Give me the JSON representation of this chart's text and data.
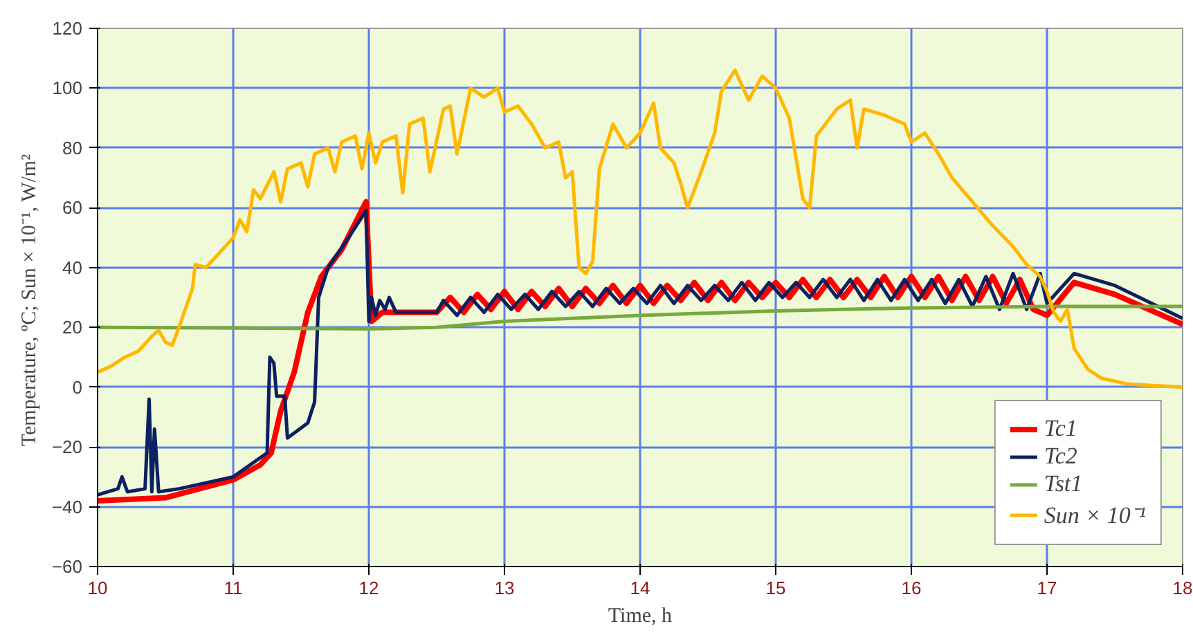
{
  "chart_data": {
    "type": "line",
    "xlabel": "Time, h",
    "ylabel": "Temperature, ºC;  Sun × 10⁻¹, W/m²",
    "xlim": [
      10,
      18
    ],
    "xticks": [
      10,
      11,
      12,
      13,
      14,
      15,
      16,
      17,
      18
    ],
    "ylim": [
      -60,
      120
    ],
    "yticks": [
      -60,
      -40,
      -20,
      0,
      20,
      40,
      60,
      80,
      100,
      120
    ],
    "grid": true,
    "legend": "bottom right",
    "line_style": "solid",
    "marker": "none",
    "series": [
      {
        "name": "Tc1",
        "color": "#ff0000",
        "x": [
          10.0,
          10.5,
          11.0,
          11.2,
          11.28,
          11.35,
          11.45,
          11.55,
          11.65,
          11.8,
          11.98,
          12.02,
          12.1,
          12.45,
          12.5,
          12.6,
          12.7,
          12.8,
          12.9,
          13.0,
          13.1,
          13.2,
          13.3,
          13.4,
          13.5,
          13.6,
          13.7,
          13.8,
          13.9,
          14.0,
          14.1,
          14.2,
          14.3,
          14.4,
          14.5,
          14.6,
          14.7,
          14.8,
          14.9,
          15.0,
          15.1,
          15.2,
          15.3,
          15.4,
          15.5,
          15.6,
          15.7,
          15.8,
          15.9,
          16.0,
          16.1,
          16.2,
          16.3,
          16.4,
          16.5,
          16.6,
          16.7,
          16.8,
          16.9,
          17.0,
          17.2,
          17.5,
          18.0
        ],
        "values": [
          -38,
          -37,
          -31,
          -26,
          -22,
          -8,
          5,
          25,
          37,
          46,
          62,
          22,
          25,
          25,
          25,
          30,
          25,
          31,
          26,
          32,
          26,
          32,
          27,
          33,
          27,
          33,
          28,
          34,
          28,
          34,
          28,
          34,
          29,
          35,
          29,
          35,
          29,
          35,
          30,
          35,
          30,
          36,
          30,
          36,
          30,
          36,
          30,
          37,
          30,
          37,
          30,
          37,
          29,
          37,
          29,
          37,
          28,
          36,
          26,
          24,
          35,
          31,
          21
        ]
      },
      {
        "name": "Tc2",
        "color": "#0d2060",
        "x": [
          10.0,
          10.15,
          10.18,
          10.22,
          10.35,
          10.38,
          10.4,
          10.42,
          10.45,
          10.6,
          11.0,
          11.25,
          11.27,
          11.3,
          11.32,
          11.38,
          11.4,
          11.55,
          11.6,
          11.63,
          11.7,
          11.85,
          11.98,
          12.0,
          12.02,
          12.05,
          12.08,
          12.12,
          12.15,
          12.2,
          12.5,
          12.55,
          12.65,
          12.75,
          12.85,
          12.95,
          13.05,
          13.15,
          13.25,
          13.35,
          13.45,
          13.55,
          13.65,
          13.75,
          13.85,
          13.95,
          14.05,
          14.15,
          14.25,
          14.35,
          14.45,
          14.55,
          14.65,
          14.75,
          14.85,
          14.95,
          15.05,
          15.15,
          15.25,
          15.35,
          15.45,
          15.55,
          15.65,
          15.75,
          15.85,
          15.95,
          16.05,
          16.15,
          16.25,
          16.35,
          16.45,
          16.55,
          16.65,
          16.75,
          16.85,
          16.95,
          17.0,
          17.2,
          17.5,
          18.0
        ],
        "values": [
          -36,
          -34,
          -30,
          -35,
          -34,
          -4,
          -35,
          -14,
          -35,
          -34,
          -30,
          -22,
          10,
          8,
          -3,
          -3,
          -17,
          -12,
          -5,
          30,
          40,
          50,
          59,
          22,
          30,
          24,
          29,
          26,
          30,
          25,
          25,
          29,
          24,
          30,
          25,
          31,
          26,
          31,
          26,
          32,
          27,
          32,
          27,
          33,
          28,
          33,
          28,
          34,
          28,
          34,
          29,
          34,
          29,
          35,
          29,
          35,
          30,
          35,
          30,
          36,
          30,
          36,
          29,
          36,
          29,
          36,
          29,
          36,
          28,
          36,
          27,
          37,
          26,
          38,
          26,
          38,
          28,
          38,
          34,
          23
        ]
      },
      {
        "name": "Tst1",
        "color": "#77aa3c",
        "x": [
          10,
          12,
          12.5,
          13,
          14,
          15,
          16,
          17,
          18
        ],
        "values": [
          20,
          19.5,
          20,
          22,
          24,
          25.5,
          26.5,
          27,
          27
        ]
      },
      {
        "name": "Sun × 10⁻¹",
        "color": "#ffb800",
        "x": [
          10.0,
          10.1,
          10.2,
          10.3,
          10.4,
          10.45,
          10.5,
          10.55,
          10.6,
          10.7,
          10.72,
          10.8,
          10.9,
          11.0,
          11.05,
          11.1,
          11.15,
          11.2,
          11.3,
          11.35,
          11.4,
          11.5,
          11.55,
          11.6,
          11.7,
          11.75,
          11.8,
          11.9,
          11.95,
          12.0,
          12.05,
          12.1,
          12.2,
          12.25,
          12.3,
          12.4,
          12.45,
          12.55,
          12.6,
          12.65,
          12.75,
          12.85,
          12.95,
          13.0,
          13.1,
          13.2,
          13.3,
          13.4,
          13.45,
          13.5,
          13.55,
          13.6,
          13.65,
          13.7,
          13.8,
          13.9,
          14.0,
          14.1,
          14.15,
          14.25,
          14.3,
          14.35,
          14.45,
          14.55,
          14.6,
          14.7,
          14.8,
          14.9,
          15.0,
          15.1,
          15.2,
          15.25,
          15.3,
          15.45,
          15.55,
          15.6,
          15.65,
          15.8,
          15.95,
          16.0,
          16.1,
          16.2,
          16.3,
          16.45,
          16.6,
          16.75,
          16.85,
          16.95,
          17.0,
          17.05,
          17.1,
          17.15,
          17.2,
          17.3,
          17.4,
          17.6,
          18.0
        ],
        "values": [
          5,
          7,
          10,
          12,
          17,
          19,
          15,
          14,
          20,
          33,
          41,
          40,
          45,
          50,
          56,
          52,
          66,
          63,
          72,
          62,
          73,
          75,
          67,
          78,
          80,
          72,
          82,
          84,
          73,
          85,
          75,
          82,
          84,
          65,
          88,
          90,
          72,
          93,
          94,
          78,
          100,
          97,
          100,
          92,
          94,
          88,
          80,
          82,
          70,
          72,
          40,
          38,
          42,
          73,
          88,
          80,
          85,
          95,
          80,
          75,
          68,
          60,
          72,
          85,
          99,
          106,
          96,
          104,
          100,
          90,
          63,
          60,
          84,
          93,
          96,
          80,
          93,
          91,
          88,
          82,
          85,
          78,
          70,
          62,
          54,
          47,
          41,
          37,
          32,
          25,
          22,
          26,
          13,
          6,
          3,
          1,
          0
        ]
      }
    ]
  }
}
